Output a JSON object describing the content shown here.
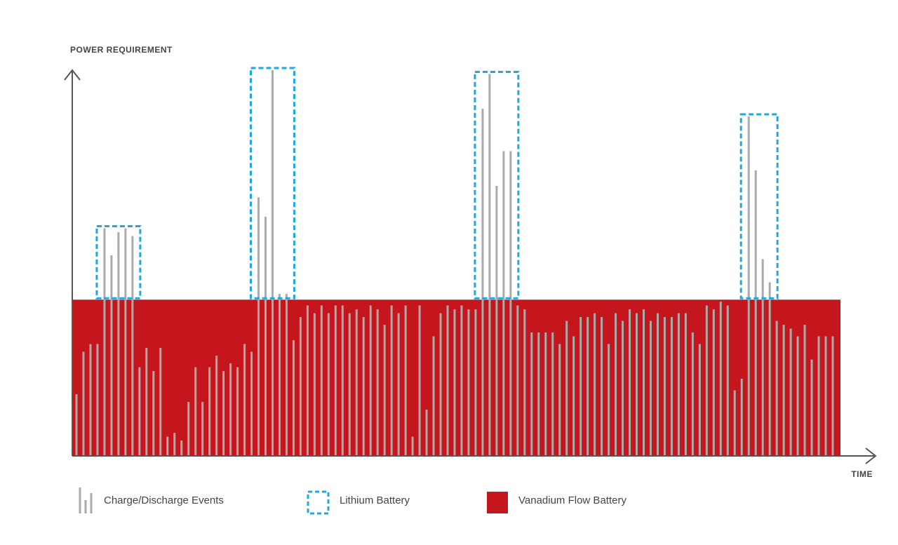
{
  "chart_data": {
    "type": "bar",
    "y_label": "POWER REQUIREMENT",
    "x_label": "TIME",
    "ylim": [
      0,
      100
    ],
    "series": [
      {
        "name": "Charge/Discharge Events",
        "color": "#aaaaaa",
        "values": [
          16,
          27,
          29,
          29,
          59,
          52,
          58,
          59,
          57,
          23,
          28,
          22,
          28,
          5,
          6,
          4,
          14,
          23,
          14,
          23,
          26,
          22,
          24,
          23,
          29,
          27,
          67,
          62,
          100,
          42,
          42,
          30,
          36,
          39,
          37,
          39,
          37,
          39,
          39,
          37,
          38,
          36,
          39,
          38,
          34,
          39,
          37,
          39,
          5,
          39,
          12,
          31,
          37,
          39,
          38,
          39,
          38,
          38,
          90,
          99,
          70,
          79,
          79,
          39,
          38,
          32,
          32,
          32,
          32,
          29,
          35,
          31,
          36,
          36,
          37,
          36,
          29,
          37,
          35,
          38,
          37,
          38,
          35,
          37,
          36,
          36,
          37,
          37,
          32,
          29,
          39,
          38,
          40,
          39,
          17,
          20,
          88,
          74,
          51,
          45,
          35,
          34,
          33,
          31,
          34,
          25,
          31,
          31,
          31
        ]
      }
    ],
    "lithium": {
      "name": "Lithium Battery",
      "color": "#1ea7e1"
    },
    "vanadium": {
      "name": "Vanadium Flow Battery",
      "color": "#c4161c",
      "value": 40.5
    }
  }
}
